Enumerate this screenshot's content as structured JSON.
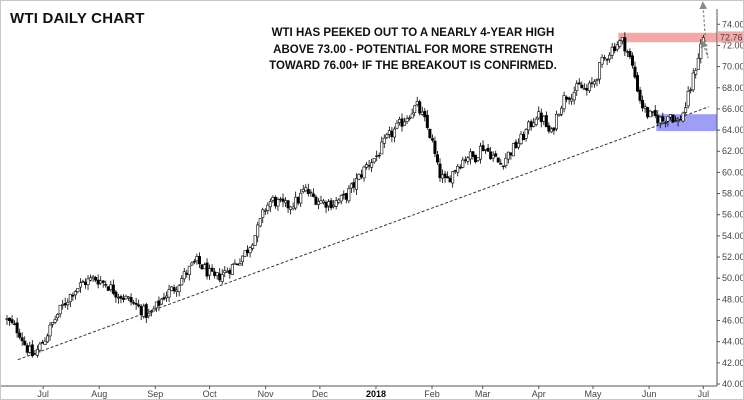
{
  "header": {
    "title": "WTI DAILY CHART"
  },
  "annotation": {
    "lines": [
      "WTI HAS PEEKED OUT TO A NEARLY 4-YEAR HIGH",
      "ABOVE 73.00 - POTENTIAL FOR MORE STRENGTH",
      "TOWARD 76.00+ IF THE BREAKOUT IS CONFIRMED."
    ]
  },
  "colors": {
    "up_candle": "#ffffff",
    "down_candle": "#000000",
    "resistance_zone": "#f4a9a9",
    "support_zone": "#9e9ef7",
    "trendline": "#333333",
    "arrow": "#888888",
    "last_price_label_bg": "#f4a9a9"
  },
  "chart_data": {
    "type": "candlestick",
    "title": "WTI DAILY CHART",
    "instrument": "WTI",
    "timeframe": "Daily",
    "ylim": [
      40,
      74.5
    ],
    "y_ticks": [
      "40.00",
      "42.00",
      "44.00",
      "46.00",
      "48.00",
      "50.00",
      "52.00",
      "54.00",
      "56.00",
      "58.00",
      "60.00",
      "62.00",
      "64.00",
      "66.00",
      "68.00",
      "70.00",
      "72.00",
      "74.00"
    ],
    "x_ticks": [
      {
        "label": "Jul",
        "day": 20,
        "bold": false
      },
      {
        "label": "Aug",
        "day": 51,
        "bold": false
      },
      {
        "label": "Sep",
        "day": 82,
        "bold": false
      },
      {
        "label": "Oct",
        "day": 112,
        "bold": false
      },
      {
        "label": "Nov",
        "day": 143,
        "bold": false
      },
      {
        "label": "Dec",
        "day": 173,
        "bold": false
      },
      {
        "label": "2018",
        "day": 204,
        "bold": true
      },
      {
        "label": "Feb",
        "day": 235,
        "bold": false
      },
      {
        "label": "Mar",
        "day": 263,
        "bold": false
      },
      {
        "label": "Apr",
        "day": 294,
        "bold": false
      },
      {
        "label": "May",
        "day": 324,
        "bold": false
      },
      {
        "label": "Jun",
        "day": 355,
        "bold": false
      },
      {
        "label": "Jul",
        "day": 385,
        "bold": false
      }
    ],
    "x_range_days": [
      0,
      392
    ],
    "last_price": 72.76,
    "last_price_label": "72.76",
    "path_anchors": [
      [
        0,
        46.2
      ],
      [
        8,
        45.0
      ],
      [
        12,
        43.5
      ],
      [
        16,
        42.6
      ],
      [
        22,
        44.2
      ],
      [
        30,
        46.8
      ],
      [
        38,
        48.8
      ],
      [
        44,
        49.6
      ],
      [
        50,
        50.0
      ],
      [
        56,
        49.5
      ],
      [
        62,
        48.6
      ],
      [
        70,
        47.8
      ],
      [
        76,
        47.0
      ],
      [
        80,
        46.4
      ],
      [
        84,
        47.3
      ],
      [
        88,
        48.3
      ],
      [
        94,
        49.1
      ],
      [
        100,
        50.4
      ],
      [
        106,
        51.6
      ],
      [
        110,
        51.0
      ],
      [
        116,
        49.9
      ],
      [
        122,
        50.6
      ],
      [
        128,
        51.4
      ],
      [
        134,
        52.6
      ],
      [
        140,
        54.6
      ],
      [
        144,
        56.6
      ],
      [
        148,
        57.4
      ],
      [
        152,
        57.0
      ],
      [
        156,
        56.8
      ],
      [
        162,
        57.3
      ],
      [
        166,
        58.4
      ],
      [
        170,
        57.7
      ],
      [
        176,
        57.2
      ],
      [
        182,
        57.1
      ],
      [
        188,
        57.6
      ],
      [
        194,
        59.0
      ],
      [
        200,
        60.6
      ],
      [
        206,
        61.6
      ],
      [
        212,
        63.3
      ],
      [
        218,
        64.4
      ],
      [
        224,
        65.6
      ],
      [
        228,
        66.3
      ],
      [
        232,
        65.0
      ],
      [
        236,
        63.2
      ],
      [
        240,
        60.0
      ],
      [
        244,
        59.0
      ],
      [
        250,
        60.6
      ],
      [
        256,
        61.6
      ],
      [
        260,
        61.4
      ],
      [
        264,
        62.5
      ],
      [
        270,
        61.6
      ],
      [
        274,
        60.7
      ],
      [
        278,
        61.6
      ],
      [
        282,
        62.4
      ],
      [
        286,
        63.2
      ],
      [
        290,
        64.3
      ],
      [
        294,
        65.4
      ],
      [
        298,
        65.0
      ],
      [
        302,
        63.4
      ],
      [
        306,
        65.8
      ],
      [
        310,
        67.2
      ],
      [
        314,
        67.5
      ],
      [
        318,
        68.1
      ],
      [
        322,
        67.7
      ],
      [
        326,
        68.6
      ],
      [
        330,
        70.3
      ],
      [
        334,
        71.3
      ],
      [
        338,
        72.1
      ],
      [
        342,
        72.4
      ],
      [
        345,
        71.2
      ],
      [
        348,
        69.5
      ],
      [
        352,
        66.5
      ],
      [
        356,
        65.4
      ],
      [
        360,
        65.2
      ],
      [
        364,
        64.9
      ],
      [
        368,
        65.6
      ],
      [
        372,
        64.6
      ],
      [
        376,
        65.9
      ],
      [
        380,
        68.4
      ],
      [
        384,
        71.3
      ],
      [
        386,
        72.76
      ]
    ],
    "levels": {
      "resistance_zone": [
        72.3,
        73.2
      ],
      "support_zone": [
        63.9,
        65.5
      ],
      "trendline": {
        "start": {
          "day": 6,
          "price": 42.3
        },
        "end": {
          "day": 388,
          "price": 66.2
        }
      },
      "projection_targets": [
        76.0,
        71.0
      ]
    }
  }
}
